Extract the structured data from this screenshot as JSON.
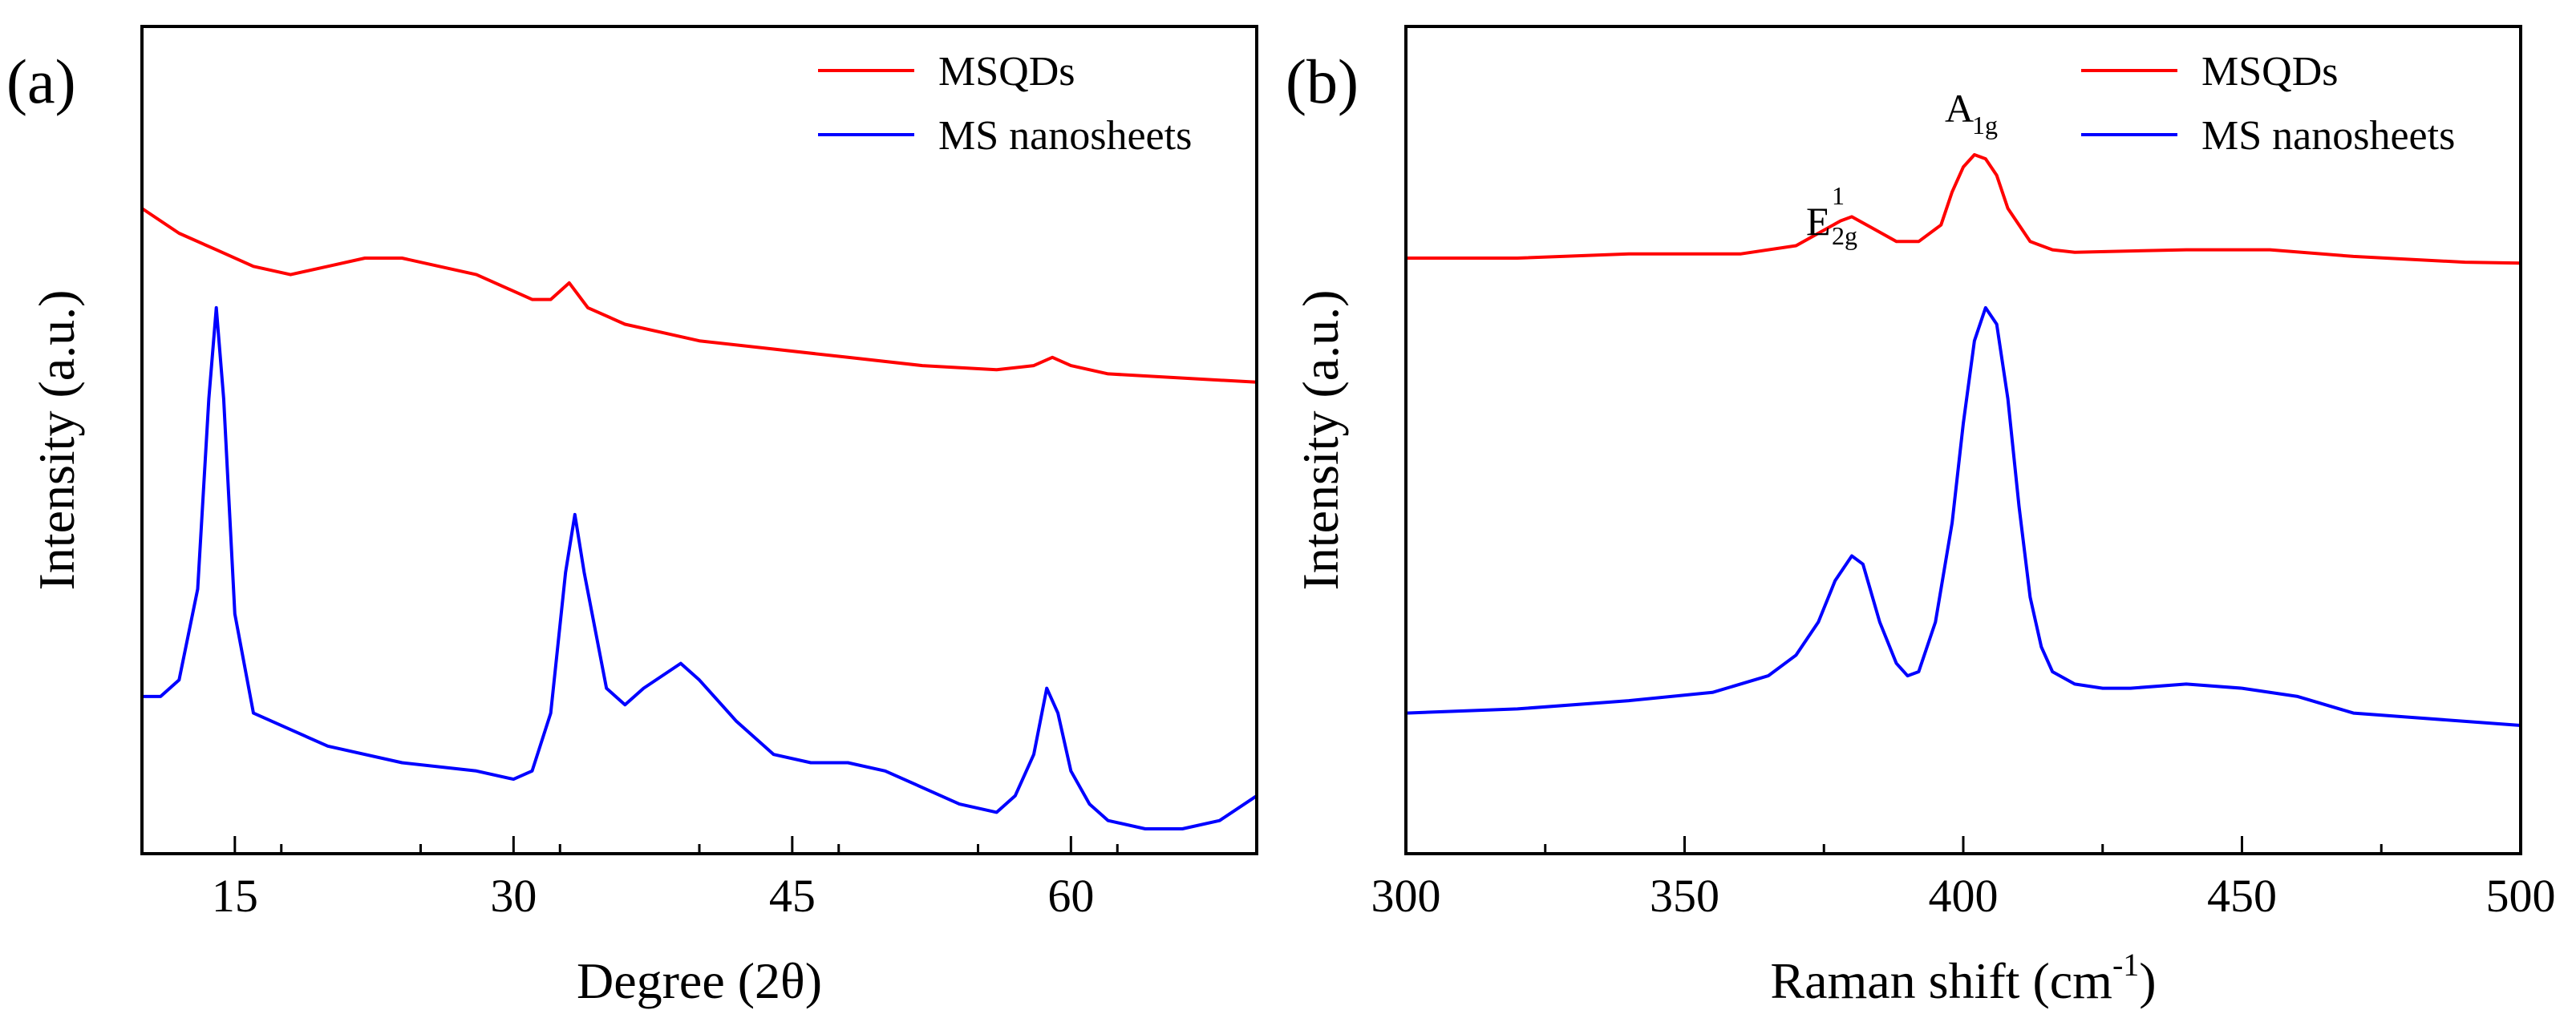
{
  "chart_data": [
    {
      "type": "line",
      "panel_label": "(a)",
      "title": "",
      "xlabel": "Degree (2θ)",
      "ylabel": "Intensity (a.u.)",
      "xlim": [
        10,
        70
      ],
      "ylim": [
        0,
        1
      ],
      "xticks": [
        15,
        30,
        45,
        60
      ],
      "xtick_labels": [
        "15",
        "30",
        "45",
        "60"
      ],
      "grid": false,
      "legend_position": "top-right",
      "series": [
        {
          "name": "MSQDs",
          "color": "#ff0000",
          "x": [
            10,
            12,
            14,
            16,
            18,
            20,
            22,
            24,
            26,
            28,
            30,
            31,
            32,
            33,
            34,
            36,
            38,
            40,
            44,
            48,
            52,
            56,
            58,
            59,
            60,
            62,
            66,
            70
          ],
          "y": [
            0.78,
            0.75,
            0.73,
            0.71,
            0.7,
            0.71,
            0.72,
            0.72,
            0.71,
            0.7,
            0.68,
            0.67,
            0.67,
            0.69,
            0.66,
            0.64,
            0.63,
            0.62,
            0.61,
            0.6,
            0.59,
            0.585,
            0.59,
            0.6,
            0.59,
            0.58,
            0.575,
            0.57
          ]
        },
        {
          "name": "MS nanosheets",
          "color": "#0000ff",
          "x": [
            10,
            11,
            12,
            13,
            13.6,
            14,
            14.4,
            15,
            16,
            18,
            20,
            24,
            28,
            30,
            31,
            32,
            32.8,
            33.3,
            33.8,
            35,
            36,
            37,
            39,
            40,
            42,
            44,
            46,
            48,
            50,
            52,
            54,
            56,
            57,
            58,
            58.7,
            59.3,
            60,
            61,
            62,
            64,
            66,
            68,
            70
          ],
          "y": [
            0.19,
            0.19,
            0.21,
            0.32,
            0.55,
            0.66,
            0.55,
            0.29,
            0.17,
            0.15,
            0.13,
            0.11,
            0.1,
            0.09,
            0.1,
            0.17,
            0.34,
            0.41,
            0.34,
            0.2,
            0.18,
            0.2,
            0.23,
            0.21,
            0.16,
            0.12,
            0.11,
            0.11,
            0.1,
            0.08,
            0.06,
            0.05,
            0.07,
            0.12,
            0.2,
            0.17,
            0.1,
            0.06,
            0.04,
            0.03,
            0.03,
            0.04,
            0.07
          ]
        }
      ]
    },
    {
      "type": "line",
      "panel_label": "(b)",
      "title": "",
      "xlabel": "Raman shift (cm",
      "xlabel_superscript": "-1",
      "xlabel_suffix": ")",
      "ylabel": "Intensity (a.u.)",
      "xlim": [
        300,
        500
      ],
      "ylim": [
        0,
        1
      ],
      "xticks": [
        300,
        350,
        400,
        450,
        500
      ],
      "xtick_labels": [
        "300",
        "350",
        "400",
        "450",
        "500"
      ],
      "grid": false,
      "legend_position": "top-right",
      "annotations": [
        {
          "base": "E",
          "sup": "1",
          "sub": "2g",
          "x": 380
        },
        {
          "base": "A",
          "sub": "1g",
          "x": 402
        }
      ],
      "series": [
        {
          "name": "MSQDs",
          "color": "#ff0000",
          "x": [
            300,
            320,
            340,
            360,
            370,
            374,
            378,
            380,
            384,
            388,
            392,
            396,
            398,
            400,
            402,
            404,
            406,
            408,
            412,
            416,
            420,
            440,
            455,
            470,
            490,
            500
          ],
          "y": [
            0.72,
            0.72,
            0.725,
            0.725,
            0.735,
            0.75,
            0.765,
            0.77,
            0.755,
            0.74,
            0.74,
            0.76,
            0.8,
            0.83,
            0.845,
            0.84,
            0.82,
            0.78,
            0.74,
            0.73,
            0.727,
            0.73,
            0.73,
            0.722,
            0.715,
            0.714
          ]
        },
        {
          "name": "MS nanosheets",
          "color": "#0000ff",
          "x": [
            300,
            320,
            340,
            355,
            365,
            370,
            374,
            377,
            380,
            382,
            385,
            388,
            390,
            392,
            395,
            398,
            400,
            402,
            404,
            406,
            408,
            410,
            412,
            414,
            416,
            420,
            425,
            430,
            440,
            450,
            460,
            470,
            480,
            490,
            500
          ],
          "y": [
            0.17,
            0.175,
            0.185,
            0.195,
            0.215,
            0.24,
            0.28,
            0.33,
            0.36,
            0.35,
            0.28,
            0.23,
            0.215,
            0.22,
            0.28,
            0.4,
            0.52,
            0.62,
            0.66,
            0.64,
            0.55,
            0.42,
            0.31,
            0.25,
            0.22,
            0.205,
            0.2,
            0.2,
            0.205,
            0.2,
            0.19,
            0.17,
            0.165,
            0.16,
            0.155
          ]
        }
      ]
    }
  ]
}
